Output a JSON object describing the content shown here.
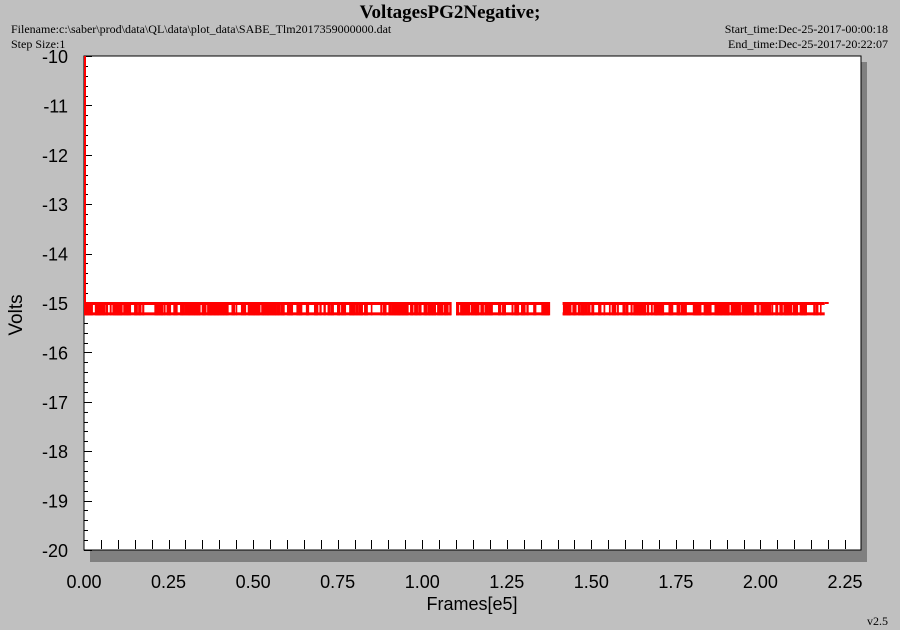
{
  "header": {
    "title": "VoltagesPG2Negative;",
    "filename": "Filename:c:\\saber\\prod\\data\\QL\\data\\plot_data\\SABE_Tlm2017359000000.dat",
    "step_size": "Step Size:1",
    "start_time": "Start_time:Dec-25-2017-00:00:18",
    "end_time": "End_time:Dec-25-2017-20:22:07",
    "version": "v2.5"
  },
  "colors": {
    "background": "#c0c0c0",
    "plot_area": "#ffffff",
    "data": "#ff0000",
    "shadow": "#808080"
  },
  "chart_data": {
    "type": "line",
    "title": "VoltagesPG2Negative;",
    "xlabel": "Frames[e5]",
    "ylabel": "Volts",
    "xlim": [
      0,
      2.25
    ],
    "ylim": [
      -20,
      -10
    ],
    "xticks": [
      "0.00",
      "0.25",
      "0.50",
      "0.75",
      "1.00",
      "1.25",
      "1.50",
      "1.75",
      "2.00",
      "2.25"
    ],
    "yticks": [
      "-10",
      "-11",
      "-12",
      "-13",
      "-14",
      "-15",
      "-16",
      "-17",
      "-18",
      "-19",
      "-20"
    ],
    "grid": false,
    "legend": "none",
    "series": [
      {
        "color": "#ff0000",
        "x_range": [
          0,
          2.19
        ],
        "value": -15,
        "toggle_values": [
          -15.0,
          -15.25
        ],
        "gaps": [
          [
            1.085,
            1.1
          ],
          [
            1.375,
            1.415
          ]
        ]
      }
    ]
  }
}
